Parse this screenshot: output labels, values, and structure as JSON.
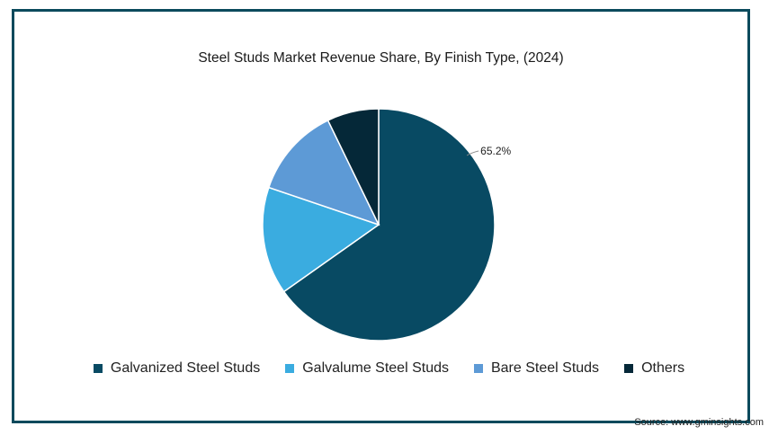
{
  "title": "Steel Studs Market Revenue Share, By Finish Type,  (2024)",
  "source": "Source: www.gminsights.com",
  "chart_data": {
    "type": "pie",
    "title": "Steel Studs Market Revenue Share, By Finish Type,  (2024)",
    "legend_position": "bottom",
    "slices": [
      {
        "name": "Galvanized Steel Studs",
        "value": 65.2,
        "color": "#084a63",
        "label": "65.2%"
      },
      {
        "name": "Galvalume Steel Studs",
        "value": 15.0,
        "color": "#3aace0",
        "label": ""
      },
      {
        "name": "Bare Steel Studs",
        "value": 12.6,
        "color": "#5d9ad6",
        "label": ""
      },
      {
        "name": "Others",
        "value": 7.2,
        "color": "#052838",
        "label": ""
      }
    ]
  }
}
